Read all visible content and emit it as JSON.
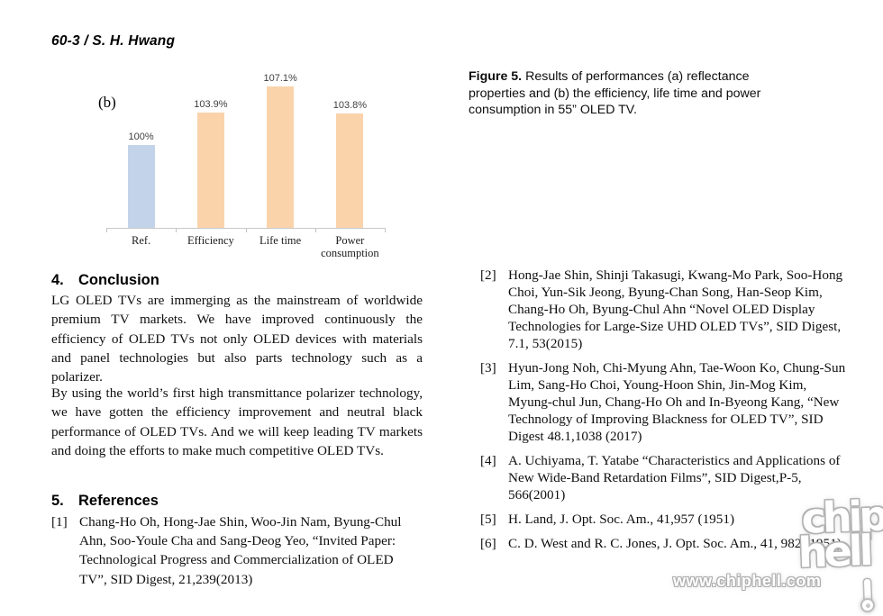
{
  "header": "60-3 / S. H. Hwang",
  "figure_caption": {
    "bold": "Figure 5.",
    "lines": [
      "Results of performances (a) reflectance",
      "properties and (b) the efficiency, life time and power",
      "consumption in 55” OLED TV."
    ]
  },
  "chart_data": {
    "type": "bar",
    "panel_label": "(b)",
    "title": "",
    "xlabel": "",
    "ylabel": "",
    "categories": [
      "Ref.",
      "Efficiency",
      "Life time",
      "Power consumption"
    ],
    "values": [
      100,
      103.9,
      107.1,
      103.8
    ],
    "value_labels": [
      "100%",
      "103.9%",
      "107.1%",
      "103.8%"
    ],
    "bar_colors": [
      "#c3d4ea",
      "#fad3ab",
      "#fad3ab",
      "#fad3ab"
    ],
    "axis_min": 90,
    "axis_max": 107.1,
    "grid": false,
    "legend": "none"
  },
  "conclusion": {
    "number": "4.",
    "title": "Conclusion",
    "paragraphs": [
      "LG OLED TVs are immerging as the mainstream of worldwide premium TV markets. We have improved continuously the efficiency of OLED TVs not only OLED devices with materials and panel technologies but also parts technology such as a polarizer.",
      "By using the world’s first high transmittance polarizer technology, we have gotten the efficiency improvement and neutral black performance of OLED TVs. And we will keep leading TV markets and doing the efforts to make much competitive OLED TVs."
    ]
  },
  "references": {
    "number": "5.",
    "title": "References",
    "left_items": [
      {
        "id": "[1]",
        "text": "Chang-Ho Oh, Hong-Jae Shin, Woo-Jin Nam, Byung-Chul Ahn, Soo-Youle Cha and Sang-Deog Yeo, “Invited Paper: Technological Progress and Commercialization of OLED TV”, SID Digest, 21,239(2013)"
      }
    ],
    "right_items": [
      {
        "id": "[2]",
        "text": "Hong-Jae Shin, Shinji Takasugi, Kwang-Mo Park, Soo-Hong Choi, Yun-Sik Jeong, Byung-Chan Song, Han-Seop Kim, Chang-Ho Oh, Byung-Chul Ahn “Novel OLED Display Technologies for Large-Size UHD OLED TVs”, SID Digest, 7.1, 53(2015)"
      },
      {
        "id": "[3]",
        "text": "Hyun-Jong Noh, Chi-Myung Ahn, Tae-Woon Ko, Chung-Sun Lim, Sang-Ho Choi, Young-Hoon Shin, Jin-Mog Kim, Myung-chul Jun, Chang-Ho Oh and In-Byeong Kang, “New Technology of Improving Blackness for OLED TV”, SID Digest 48.1,1038 (2017)"
      },
      {
        "id": "[4]",
        "text": "A. Uchiyama, T. Yatabe “Characteristics and Applications of New Wide-Band Retardation Films”, SID Digest,P-5, 566(2001)"
      },
      {
        "id": "[5]",
        "text": "H. Land, J. Opt. Soc. Am., 41,957 (1951)"
      },
      {
        "id": "[6]",
        "text": "C. D. West and R. C. Jones, J. Opt. Soc. Am., 41, 982 (1951)"
      }
    ]
  },
  "watermark": {
    "url_text": "www.chiphell.com",
    "logo_top": "chip",
    "logo_bottom": "hell"
  }
}
